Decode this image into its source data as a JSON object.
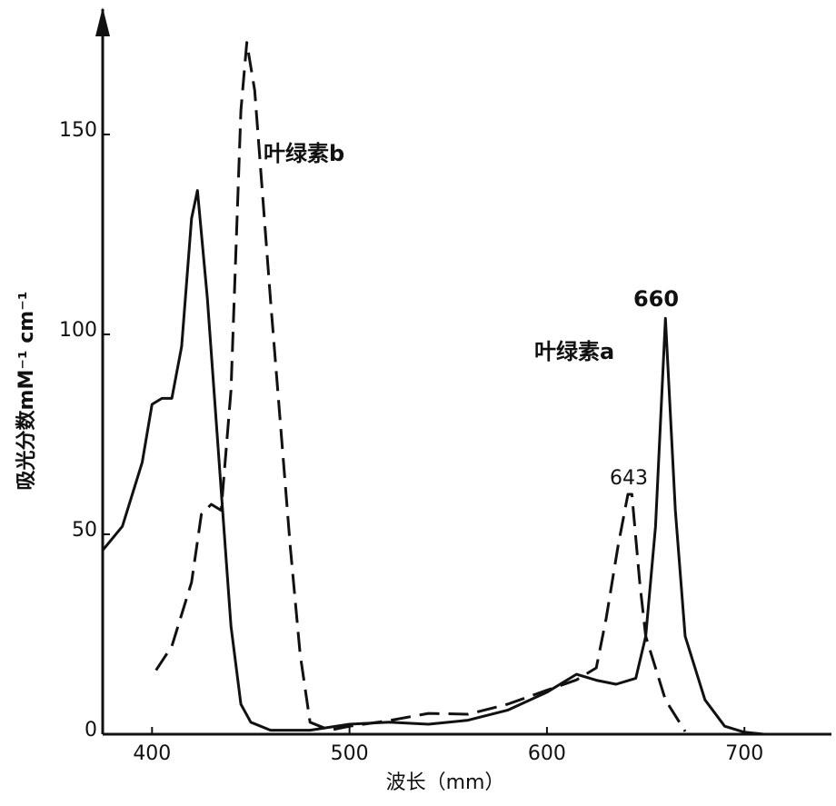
{
  "chart_data": {
    "type": "line",
    "x_label": "波长（mm）",
    "y_label": "吸光分数mM⁻¹ cm⁻¹",
    "annotations": [
      "叶绿素b",
      "叶绿素a",
      "660",
      "643"
    ],
    "xlim": [
      375,
      745
    ],
    "ylim": [
      0,
      180
    ],
    "xticks": [
      400,
      500,
      600,
      700
    ],
    "yticks": [
      0,
      50,
      100,
      150
    ],
    "series": [
      {
        "name": "叶绿素a",
        "color": "#111111",
        "dash": "solid",
        "x": [
          375,
          385,
          395,
          400,
          405,
          410,
          415,
          420,
          423,
          428,
          435,
          440,
          445,
          450,
          460,
          480,
          500,
          520,
          540,
          560,
          580,
          600,
          615,
          625,
          635,
          645,
          650,
          655,
          660,
          665,
          670,
          680,
          690,
          700,
          710
        ],
        "values": [
          46,
          52,
          68,
          82.5,
          84,
          84,
          97,
          129,
          136,
          109,
          61,
          27,
          7.5,
          3,
          1,
          1,
          2.5,
          3,
          2.5,
          3.5,
          6,
          10.5,
          15,
          13.5,
          12.5,
          14,
          24.5,
          52,
          104,
          56,
          24.5,
          8.6,
          2,
          0.5,
          0
        ]
      },
      {
        "name": "叶绿素b",
        "color": "#111111",
        "dash": "dashed",
        "x": [
          402,
          410,
          420,
          425,
          430,
          435,
          440,
          445,
          448,
          452,
          460,
          470,
          475,
          480,
          490,
          500,
          520,
          540,
          560,
          580,
          600,
          615,
          625,
          630,
          636,
          641,
          643,
          647,
          650,
          660,
          670
        ],
        "values": [
          16,
          22,
          38,
          55,
          57.5,
          56,
          86,
          156,
          173,
          161,
          108.6,
          47,
          20,
          3,
          1,
          2,
          3.4,
          5.2,
          5,
          7.5,
          11,
          13.6,
          16.6,
          29,
          47,
          60,
          60,
          38,
          24.5,
          8.6,
          0.7
        ]
      }
    ]
  }
}
